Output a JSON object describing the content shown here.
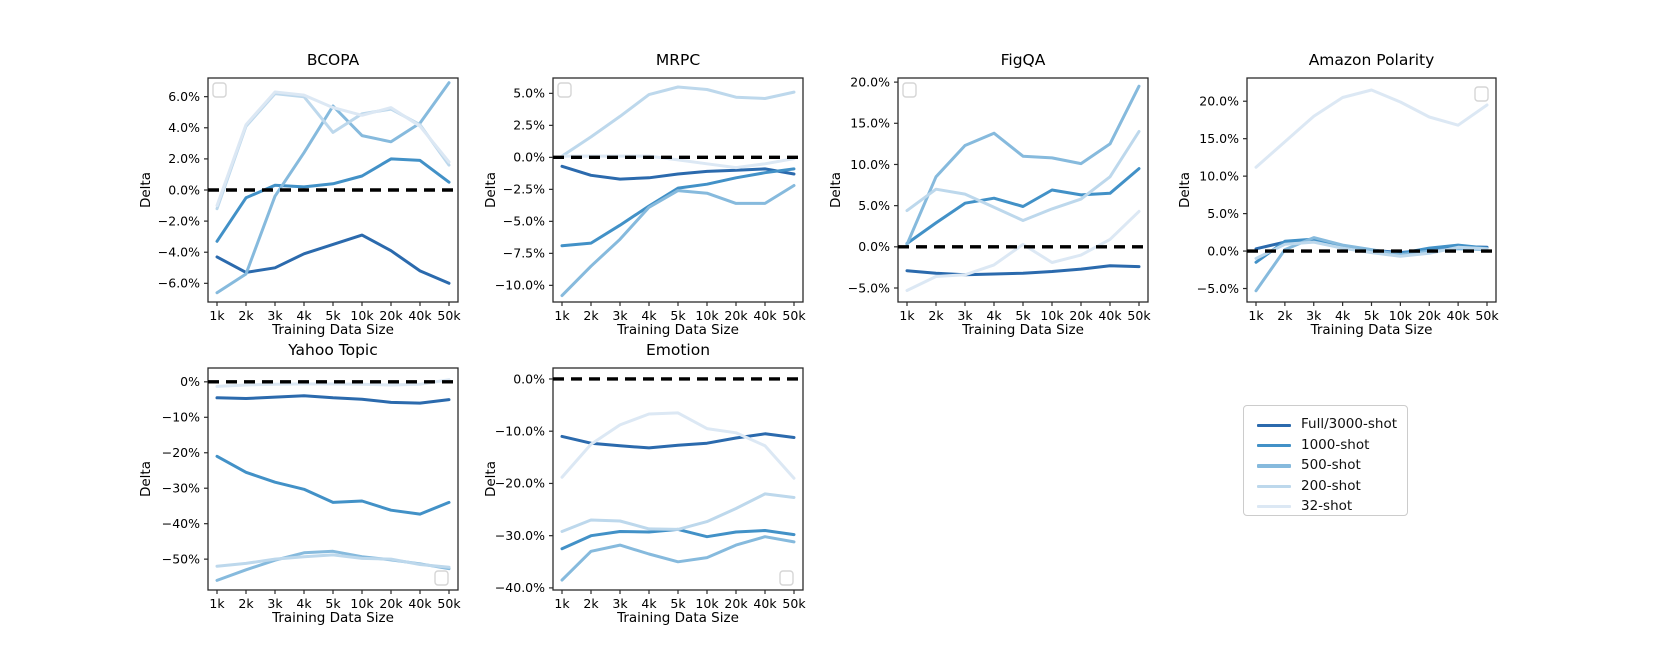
{
  "figure": {
    "background": "#ffffff",
    "spine_color": "#2b2b2b",
    "zero_line_color": "#000000"
  },
  "legend": {
    "position": "bottom-right",
    "items": [
      {
        "label": "Full/3000-shot",
        "color": "#2b6aad"
      },
      {
        "label": "1000-shot",
        "color": "#4291c7"
      },
      {
        "label": "500-shot",
        "color": "#86badd"
      },
      {
        "label": "200-shot",
        "color": "#bdd8ec"
      },
      {
        "label": "32-shot",
        "color": "#dce8f4"
      }
    ]
  },
  "chart_data": [
    {
      "type": "line",
      "title": "BCOPA",
      "xlabel": "Training Data Size",
      "ylabel": "Delta",
      "categories": [
        "1k",
        "2k",
        "3k",
        "4k",
        "5k",
        "10k",
        "20k",
        "40k",
        "50k"
      ],
      "ylim": [
        -7.2,
        7.2
      ],
      "zero_line": true,
      "grid": false,
      "y_ticks": [
        {
          "value": 6,
          "label": "6.0%"
        },
        {
          "value": 4,
          "label": "4.0%"
        },
        {
          "value": 2,
          "label": "2.0%"
        },
        {
          "value": 0,
          "label": "0.0%"
        },
        {
          "value": -2,
          "label": "−2.0%"
        },
        {
          "value": -4,
          "label": "−4.0%"
        },
        {
          "value": -6,
          "label": "−6.0%"
        }
      ],
      "series": [
        {
          "name": "Full/3000-shot",
          "values": [
            -4.3,
            -5.3,
            -5.0,
            -4.1,
            -3.5,
            -2.9,
            -3.9,
            -5.2,
            -6.0
          ]
        },
        {
          "name": "1000-shot",
          "values": [
            -3.3,
            -0.5,
            0.3,
            0.2,
            0.4,
            0.9,
            2.0,
            1.9,
            0.5
          ]
        },
        {
          "name": "500-shot",
          "values": [
            -6.6,
            -5.4,
            -0.4,
            2.4,
            5.4,
            3.5,
            3.1,
            4.3,
            6.9
          ]
        },
        {
          "name": "200-shot",
          "values": [
            -1.2,
            4.1,
            6.2,
            6.0,
            3.7,
            4.9,
            5.2,
            4.2,
            1.6
          ]
        },
        {
          "name": "32-shot",
          "values": [
            -1.0,
            4.2,
            6.3,
            6.1,
            5.3,
            4.8,
            5.3,
            4.1,
            1.8
          ]
        }
      ]
    },
    {
      "type": "line",
      "title": "MRPC",
      "xlabel": "Training Data Size",
      "ylabel": "Delta",
      "categories": [
        "1k",
        "2k",
        "3k",
        "4k",
        "5k",
        "10k",
        "20k",
        "40k",
        "50k"
      ],
      "ylim": [
        -11.3,
        6.2
      ],
      "zero_line": true,
      "grid": false,
      "y_ticks": [
        {
          "value": 5,
          "label": "5.0%"
        },
        {
          "value": 2.5,
          "label": "2.5%"
        },
        {
          "value": 0,
          "label": "0.0%"
        },
        {
          "value": -2.5,
          "label": "−2.5%"
        },
        {
          "value": -5,
          "label": "−5.0%"
        },
        {
          "value": -7.5,
          "label": "−7.5%"
        },
        {
          "value": -10,
          "label": "−10.0%"
        }
      ],
      "series": [
        {
          "name": "Full/3000-shot",
          "values": [
            -0.7,
            -1.4,
            -1.7,
            -1.6,
            -1.3,
            -1.1,
            -1.0,
            -0.9,
            -1.3
          ]
        },
        {
          "name": "1000-shot",
          "values": [
            -6.9,
            -6.7,
            -5.3,
            -3.8,
            -2.4,
            -2.1,
            -1.6,
            -1.2,
            -0.9
          ]
        },
        {
          "name": "500-shot",
          "values": [
            -10.8,
            -8.5,
            -6.4,
            -3.9,
            -2.6,
            -2.8,
            -3.6,
            -3.6,
            -2.2
          ]
        },
        {
          "name": "200-shot",
          "values": [
            0.1,
            1.6,
            3.2,
            4.9,
            5.5,
            5.3,
            4.7,
            4.6,
            5.1
          ]
        },
        {
          "name": "32-shot",
          "values": [
            0.1,
            0.1,
            0.1,
            0.1,
            -0.2,
            -0.5,
            -0.8,
            -0.5,
            -0.1
          ]
        }
      ]
    },
    {
      "type": "line",
      "title": "FigQA",
      "xlabel": "Training Data Size",
      "ylabel": "Delta",
      "categories": [
        "1k",
        "2k",
        "3k",
        "4k",
        "5k",
        "10k",
        "20k",
        "40k",
        "50k"
      ],
      "ylim": [
        -6.7,
        20.5
      ],
      "zero_line": true,
      "grid": false,
      "y_ticks": [
        {
          "value": 20,
          "label": "20.0%"
        },
        {
          "value": 15,
          "label": "15.0%"
        },
        {
          "value": 10,
          "label": "10.0%"
        },
        {
          "value": 5,
          "label": "5.0%"
        },
        {
          "value": 0,
          "label": "0.0%"
        },
        {
          "value": -5,
          "label": "−5.0%"
        }
      ],
      "series": [
        {
          "name": "Full/3000-shot",
          "values": [
            -2.9,
            -3.2,
            -3.4,
            -3.3,
            -3.2,
            -3.0,
            -2.7,
            -2.3,
            -2.4
          ]
        },
        {
          "name": "1000-shot",
          "values": [
            0.4,
            2.9,
            5.3,
            5.9,
            4.9,
            6.9,
            6.3,
            6.5,
            9.5
          ]
        },
        {
          "name": "500-shot",
          "values": [
            0.3,
            8.5,
            12.3,
            13.8,
            11.0,
            10.8,
            10.1,
            12.5,
            19.5
          ]
        },
        {
          "name": "200-shot",
          "values": [
            4.4,
            7.0,
            6.4,
            4.8,
            3.2,
            4.6,
            5.8,
            8.5,
            14.0
          ]
        },
        {
          "name": "32-shot",
          "values": [
            -5.3,
            -3.6,
            -3.4,
            -2.2,
            0.3,
            -1.9,
            -1.0,
            0.9,
            4.3
          ]
        }
      ]
    },
    {
      "type": "line",
      "title": "Amazon Polarity",
      "xlabel": "Training Data Size",
      "ylabel": "Delta",
      "categories": [
        "1k",
        "2k",
        "3k",
        "4k",
        "5k",
        "10k",
        "20k",
        "40k",
        "50k"
      ],
      "ylim": [
        -6.8,
        23.1
      ],
      "zero_line": true,
      "grid": false,
      "y_ticks": [
        {
          "value": 20,
          "label": "20.0%"
        },
        {
          "value": 15,
          "label": "15.0%"
        },
        {
          "value": 10,
          "label": "10.0%"
        },
        {
          "value": 5,
          "label": "5.0%"
        },
        {
          "value": 0,
          "label": "0.0%"
        },
        {
          "value": -5,
          "label": "−5.0%"
        }
      ],
      "series": [
        {
          "name": "Full/3000-shot",
          "values": [
            0.3,
            1.2,
            1.4,
            0.6,
            0.1,
            -0.2,
            0.2,
            0.6,
            0.5
          ]
        },
        {
          "name": "1000-shot",
          "values": [
            -1.5,
            1.3,
            1.6,
            0.5,
            0.0,
            -0.3,
            0.4,
            0.8,
            0.4
          ]
        },
        {
          "name": "500-shot",
          "values": [
            -5.3,
            0.2,
            1.8,
            0.8,
            0.2,
            -0.5,
            0.0,
            0.3,
            0.2
          ]
        },
        {
          "name": "200-shot",
          "values": [
            -1.0,
            0.9,
            1.2,
            0.4,
            -0.2,
            -0.7,
            -0.3,
            0.5,
            0.3
          ]
        },
        {
          "name": "32-shot",
          "values": [
            11.2,
            14.6,
            18.0,
            20.5,
            21.5,
            19.9,
            17.9,
            16.8,
            19.5
          ]
        }
      ]
    },
    {
      "type": "line",
      "title": "Yahoo Topic",
      "xlabel": "Training Data Size",
      "ylabel": "Delta",
      "categories": [
        "1k",
        "2k",
        "3k",
        "4k",
        "5k",
        "10k",
        "20k",
        "40k",
        "50k"
      ],
      "ylim": [
        -58.7,
        3.9
      ],
      "zero_line": true,
      "grid": false,
      "y_ticks": [
        {
          "value": 0,
          "label": "0%"
        },
        {
          "value": -10,
          "label": "−10%"
        },
        {
          "value": -20,
          "label": "−20%"
        },
        {
          "value": -30,
          "label": "−30%"
        },
        {
          "value": -40,
          "label": "−40%"
        },
        {
          "value": -50,
          "label": "−50%"
        }
      ],
      "series": [
        {
          "name": "Full/3000-shot",
          "values": [
            -4.5,
            -4.7,
            -4.3,
            -3.9,
            -4.5,
            -4.9,
            -5.8,
            -6.0,
            -5.0
          ]
        },
        {
          "name": "1000-shot",
          "values": [
            -21.0,
            -25.5,
            -28.3,
            -30.3,
            -34.0,
            -33.6,
            -36.2,
            -37.3,
            -34.0
          ]
        },
        {
          "name": "500-shot",
          "values": [
            -56.0,
            -53.0,
            -50.3,
            -48.2,
            -47.8,
            -49.3,
            -50.2,
            -51.3,
            -52.7
          ]
        },
        {
          "name": "200-shot",
          "values": [
            -52.0,
            -51.2,
            -50.0,
            -49.3,
            -48.8,
            -49.8,
            -50.0,
            -51.5,
            -52.3
          ]
        },
        {
          "name": "32-shot",
          "values": [
            -1.3,
            -0.9,
            -0.7,
            -0.6,
            -0.6,
            -0.7,
            -0.9,
            -0.7,
            0.6
          ]
        }
      ]
    },
    {
      "type": "line",
      "title": "Emotion",
      "xlabel": "Training Data Size",
      "ylabel": "Delta",
      "categories": [
        "1k",
        "2k",
        "3k",
        "4k",
        "5k",
        "10k",
        "20k",
        "40k",
        "50k"
      ],
      "ylim": [
        -40.4,
        2.1
      ],
      "zero_line": true,
      "grid": false,
      "y_ticks": [
        {
          "value": 0,
          "label": "0.0%"
        },
        {
          "value": -10,
          "label": "−10.0%"
        },
        {
          "value": -20,
          "label": "−20.0%"
        },
        {
          "value": -30,
          "label": "−30.0%"
        },
        {
          "value": -40,
          "label": "−40.0%"
        }
      ],
      "series": [
        {
          "name": "Full/3000-shot",
          "values": [
            -11.0,
            -12.3,
            -12.8,
            -13.2,
            -12.7,
            -12.3,
            -11.3,
            -10.5,
            -11.2
          ]
        },
        {
          "name": "1000-shot",
          "values": [
            -32.5,
            -30.0,
            -29.2,
            -29.3,
            -28.8,
            -30.2,
            -29.3,
            -29.0,
            -29.8
          ]
        },
        {
          "name": "500-shot",
          "values": [
            -38.5,
            -33.0,
            -31.8,
            -33.5,
            -35.0,
            -34.2,
            -31.8,
            -30.2,
            -31.2
          ]
        },
        {
          "name": "200-shot",
          "values": [
            -29.2,
            -27.0,
            -27.2,
            -28.7,
            -28.8,
            -27.3,
            -24.8,
            -22.0,
            -22.7
          ]
        },
        {
          "name": "32-shot",
          "values": [
            -18.8,
            -12.5,
            -8.8,
            -6.7,
            -6.5,
            -9.5,
            -10.3,
            -12.8,
            -19.0
          ]
        }
      ]
    }
  ]
}
